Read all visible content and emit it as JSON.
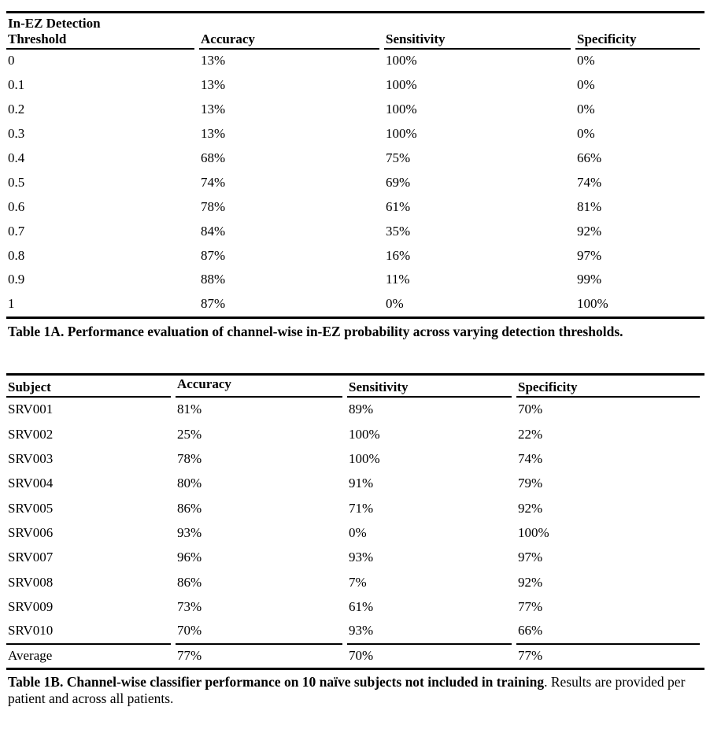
{
  "page": {
    "background": "#ffffff",
    "text_color": "#000000",
    "rule_color": "#000000"
  },
  "table_1a": {
    "title_line1": "In-EZ Detection",
    "title_line2": "Threshold",
    "columns": [
      "Accuracy",
      "Sensitivity",
      "Specificity"
    ],
    "rows": [
      [
        "0",
        "13%",
        "100%",
        "0%"
      ],
      [
        "0.1",
        "13%",
        "100%",
        "0%"
      ],
      [
        "0.2",
        "13%",
        "100%",
        "0%"
      ],
      [
        "0.3",
        "13%",
        "100%",
        "0%"
      ],
      [
        "0.4",
        "68%",
        "75%",
        "66%"
      ],
      [
        "0.5",
        "74%",
        "69%",
        "74%"
      ],
      [
        "0.6",
        "78%",
        "61%",
        "81%"
      ],
      [
        "0.7",
        "84%",
        "35%",
        "92%"
      ],
      [
        "0.8",
        "87%",
        "16%",
        "97%"
      ],
      [
        "0.9",
        "88%",
        "11%",
        "99%"
      ],
      [
        "1",
        "87%",
        "0%",
        "100%"
      ]
    ],
    "caption": "Table 1A. Performance evaluation of channel-wise in-EZ probability across varying detection thresholds."
  },
  "table_1b": {
    "columns": [
      "Subject",
      "Accuracy",
      "Sensitivity",
      "Specificity"
    ],
    "rows": [
      [
        "SRV001",
        "81%",
        "89%",
        "70%"
      ],
      [
        "SRV002",
        "25%",
        "100%",
        "22%"
      ],
      [
        "SRV003",
        "78%",
        "100%",
        "74%"
      ],
      [
        "SRV004",
        "80%",
        "91%",
        "79%"
      ],
      [
        "SRV005",
        "86%",
        "71%",
        "92%"
      ],
      [
        "SRV006",
        "93%",
        "0%",
        "100%"
      ],
      [
        "SRV007",
        "96%",
        "93%",
        "97%"
      ],
      [
        "SRV008",
        "86%",
        "7%",
        "92%"
      ],
      [
        "SRV009",
        "73%",
        "61%",
        "77%"
      ],
      [
        "SRV010",
        "70%",
        "93%",
        "66%"
      ]
    ],
    "average": [
      "Average",
      "77%",
      "70%",
      "77%"
    ],
    "caption_bold": "Table 1B. Channel-wise classifier performance on 10 naïve subjects not included in training",
    "caption_regular": ". Results are provided per patient and across all patients."
  }
}
